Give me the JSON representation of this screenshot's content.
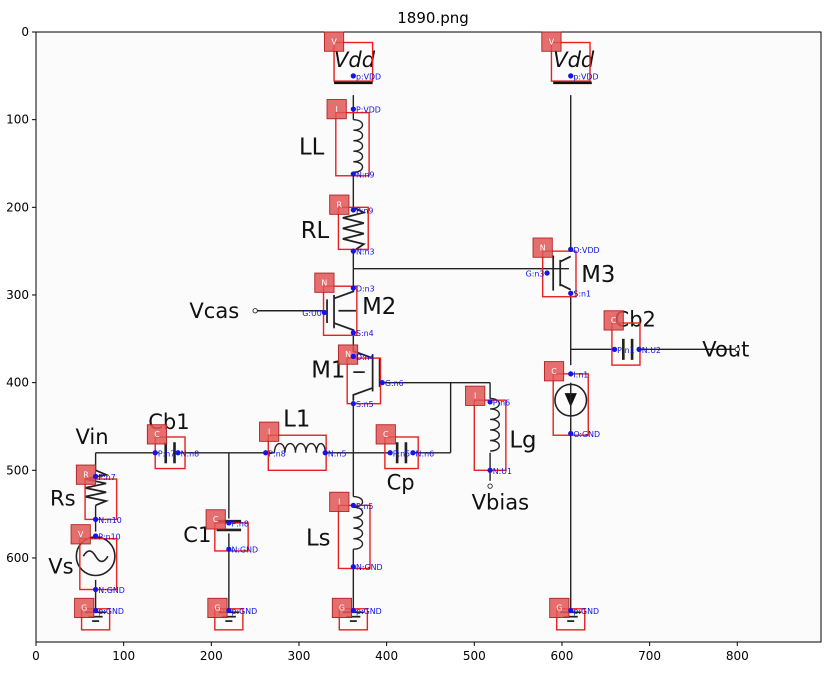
{
  "figure": {
    "title": "1890.png"
  },
  "axes": {
    "xticks": [
      "0",
      "100",
      "200",
      "300",
      "400",
      "500",
      "600",
      "700",
      "800"
    ],
    "yticks": [
      "0",
      "100",
      "200",
      "300",
      "400",
      "500",
      "600"
    ]
  },
  "labels": {
    "vdd1": "Vdd",
    "vdd2": "Vdd",
    "ll": "LL",
    "rl": "RL",
    "vcas": "Vcas",
    "m2": "M2",
    "m1": "M1",
    "m3": "M3",
    "cb2": "Cb2",
    "vout": "Vout",
    "lg": "Lg",
    "vbias": "Vbias",
    "cp": "Cp",
    "l1": "L1",
    "cb1": "Cb1",
    "vin": "Vin",
    "rs": "Rs",
    "c1": "C1",
    "ls": "Ls",
    "vs": "Vs"
  },
  "components": [
    {
      "type": "V",
      "badge_color": "#e05555",
      "pins": [
        "p:VDD"
      ]
    },
    {
      "type": "V",
      "badge_color": "#e05555",
      "pins": [
        "p:VDD"
      ]
    },
    {
      "type": "I",
      "badge_color": "#e05555",
      "pins": [
        "P:VDD",
        "N:n9"
      ]
    },
    {
      "type": "R",
      "badge_color": "#e05555",
      "pins": [
        "P:n9",
        "N:n3"
      ]
    },
    {
      "type": "N",
      "badge_color": "#e05555",
      "pins": [
        "D:n3",
        "G:U0",
        "S:n4"
      ]
    },
    {
      "type": "N",
      "badge_color": "#e05555",
      "pins": [
        "D:VDD",
        "G:n3",
        "S:n1"
      ]
    },
    {
      "type": "C",
      "badge_color": "#e05555",
      "pins": [
        "P:n1",
        "N:U2"
      ]
    },
    {
      "type": "N",
      "badge_color": "#e05555",
      "pins": [
        "D:n4",
        "G:n6",
        "S:n5"
      ]
    },
    {
      "type": "I",
      "badge_color": "#e05555",
      "pins": [
        "P:n6",
        "N:U1"
      ]
    },
    {
      "type": "C",
      "badge_color": "#e05555",
      "pins": [
        "I:n1",
        "O:GND"
      ]
    },
    {
      "type": "C",
      "badge_color": "#e05555",
      "pins": [
        "P:n5",
        "N:n6"
      ]
    },
    {
      "type": "I",
      "badge_color": "#e05555",
      "pins": [
        "P:n8",
        "N:n5"
      ]
    },
    {
      "type": "C",
      "badge_color": "#e05555",
      "pins": [
        "P:n7",
        "N:n8"
      ]
    },
    {
      "type": "R",
      "badge_color": "#e05555",
      "pins": [
        "P:n7",
        "N:n10"
      ]
    },
    {
      "type": "C",
      "badge_color": "#e05555",
      "pins": [
        "P:n8",
        "N:GND"
      ]
    },
    {
      "type": "I",
      "badge_color": "#e05555",
      "pins": [
        "P:n5",
        "N:GND"
      ]
    },
    {
      "type": "V",
      "badge_color": "#e05555",
      "pins": [
        "P:n10",
        "N:GND"
      ]
    },
    {
      "type": "G",
      "badge_color": "#e05555",
      "pins": [
        "p:GND"
      ]
    },
    {
      "type": "G",
      "badge_color": "#e05555",
      "pins": [
        "p:GND"
      ]
    },
    {
      "type": "G",
      "badge_color": "#e05555",
      "pins": [
        "p:GND"
      ]
    },
    {
      "type": "G",
      "badge_color": "#e05555",
      "pins": [
        "p:GND"
      ]
    }
  ],
  "colors": {
    "box": "#e8201f",
    "pin": "#1515e8",
    "wire": "#222222"
  }
}
